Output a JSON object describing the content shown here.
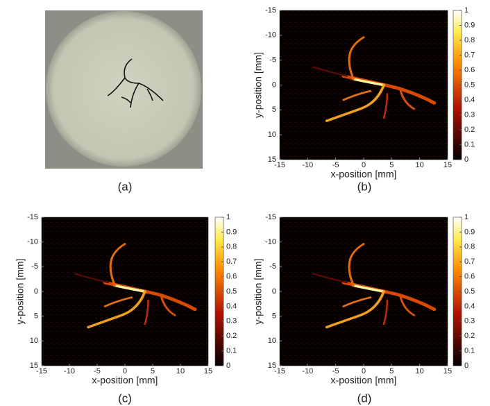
{
  "panels": [
    {
      "label": "(a)"
    },
    {
      "label": "(b)",
      "xlabel": "x-position [mm]",
      "ylabel": "y-position [mm]",
      "xlim": [
        -15,
        15
      ],
      "ylim": [
        -15,
        15
      ],
      "xticks": [
        -15,
        -10,
        -5,
        0,
        5,
        10,
        15
      ],
      "yticks": [
        -15,
        -10,
        -5,
        0,
        5,
        10,
        15
      ],
      "colorbar": {
        "lim": [
          0,
          1
        ],
        "ticks": [
          0,
          0.1,
          0.2,
          0.3,
          0.4,
          0.5,
          0.6,
          0.7,
          0.8,
          0.9,
          1
        ]
      }
    },
    {
      "label": "(c)",
      "xlabel": "x-position [mm]",
      "ylabel": "y-position [mm]",
      "xlim": [
        -15,
        15
      ],
      "ylim": [
        -15,
        15
      ],
      "xticks": [
        -15,
        -10,
        -5,
        0,
        5,
        10,
        15
      ],
      "yticks": [
        -15,
        -10,
        -5,
        0,
        5,
        10,
        15
      ],
      "colorbar": {
        "lim": [
          0,
          1
        ],
        "ticks": [
          0,
          0.1,
          0.2,
          0.3,
          0.4,
          0.5,
          0.6,
          0.7,
          0.8,
          0.9,
          1
        ]
      }
    },
    {
      "label": "(d)",
      "xlabel": "x-position [mm]",
      "ylabel": "y-position [mm]",
      "xlim": [
        -15,
        15
      ],
      "ylim": [
        -15,
        15
      ],
      "xticks": [
        -15,
        -10,
        -5,
        0,
        5,
        10,
        15
      ],
      "yticks": [
        -15,
        -10,
        -5,
        0,
        5,
        10,
        15
      ],
      "colorbar": {
        "lim": [
          0,
          1
        ],
        "ticks": [
          0,
          0.1,
          0.2,
          0.3,
          0.4,
          0.5,
          0.6,
          0.7,
          0.8,
          0.9,
          1
        ]
      }
    }
  ]
}
